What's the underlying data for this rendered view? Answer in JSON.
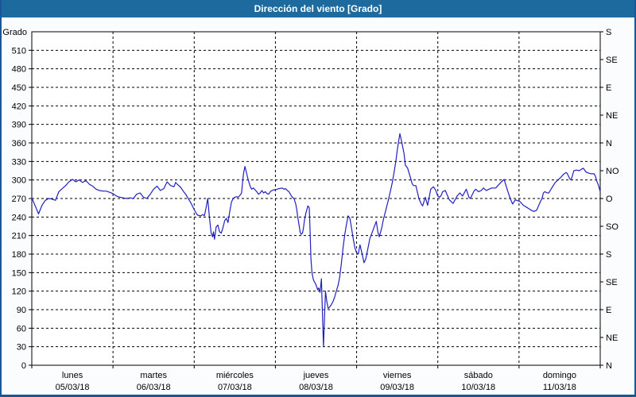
{
  "window": {
    "title": "Dirección del viento [Grado]"
  },
  "colors": {
    "titlebar_bg": "#1d6b9e",
    "titlebar_text": "#ffffff",
    "window_border": "#1a5796",
    "content_bg": "#fbfcfe",
    "plot_bg": "#ffffff",
    "grid": "#000000",
    "axis_text": "#000000",
    "series_line": "#2020bf"
  },
  "chart_data": {
    "type": "line",
    "title": "Dirección del viento [Grado]",
    "grid": "dashed",
    "legend": "none",
    "ylim": [
      0,
      540
    ],
    "xlim_hours": [
      0,
      168
    ],
    "y_left": {
      "title": "Grado",
      "ticks": [
        510,
        480,
        450,
        420,
        390,
        360,
        330,
        300,
        270,
        240,
        210,
        180,
        150,
        120,
        90,
        60,
        30,
        0
      ]
    },
    "y_right": {
      "ticks": [
        {
          "deg": 540,
          "label": "S"
        },
        {
          "deg": 495,
          "label": "SE"
        },
        {
          "deg": 450,
          "label": "E"
        },
        {
          "deg": 405,
          "label": "NE"
        },
        {
          "deg": 360,
          "label": "N"
        },
        {
          "deg": 315,
          "label": "NO"
        },
        {
          "deg": 270,
          "label": "O"
        },
        {
          "deg": 225,
          "label": "SO"
        },
        {
          "deg": 180,
          "label": "S"
        },
        {
          "deg": 135,
          "label": "SE"
        },
        {
          "deg": 90,
          "label": "E"
        },
        {
          "deg": 45,
          "label": "NE"
        },
        {
          "deg": 0,
          "label": "N"
        }
      ]
    },
    "x_axis": {
      "days": [
        {
          "name": "lunes",
          "date": "05/03/18"
        },
        {
          "name": "martes",
          "date": "06/03/18"
        },
        {
          "name": "miércoles",
          "date": "07/03/18"
        },
        {
          "name": "jueves",
          "date": "08/03/18"
        },
        {
          "name": "viernes",
          "date": "09/03/18"
        },
        {
          "name": "sábado",
          "date": "10/03/18"
        },
        {
          "name": "domingo",
          "date": "11/03/18"
        }
      ]
    },
    "series": [
      {
        "name": "Dirección del viento",
        "unit": "Grado",
        "color": "#2020bf",
        "points": [
          [
            0,
            271
          ],
          [
            1,
            258
          ],
          [
            2,
            245
          ],
          [
            3,
            259
          ],
          [
            4,
            267
          ],
          [
            5,
            270
          ],
          [
            6,
            269
          ],
          [
            7,
            267
          ],
          [
            8,
            281
          ],
          [
            9,
            286
          ],
          [
            10,
            291
          ],
          [
            11,
            297
          ],
          [
            12,
            301
          ],
          [
            13,
            297
          ],
          [
            14,
            300
          ],
          [
            15,
            296
          ],
          [
            16,
            299
          ],
          [
            17,
            293
          ],
          [
            18,
            290
          ],
          [
            19,
            285
          ],
          [
            20,
            283
          ],
          [
            21,
            282
          ],
          [
            22,
            282
          ],
          [
            23,
            280
          ],
          [
            24,
            278
          ],
          [
            25,
            274
          ],
          [
            26,
            272
          ],
          [
            27,
            271
          ],
          [
            28,
            270
          ],
          [
            29,
            271
          ],
          [
            30,
            270
          ],
          [
            31,
            277
          ],
          [
            32,
            279
          ],
          [
            33,
            272
          ],
          [
            34,
            270
          ],
          [
            35,
            277
          ],
          [
            36,
            285
          ],
          [
            37,
            290
          ],
          [
            38,
            283
          ],
          [
            39,
            286
          ],
          [
            40,
            297
          ],
          [
            41,
            291
          ],
          [
            42,
            289
          ],
          [
            42.5,
            296
          ],
          [
            43,
            293
          ],
          [
            44,
            288
          ],
          [
            44.5,
            284
          ],
          [
            45,
            280
          ],
          [
            45.5,
            277
          ],
          [
            46,
            272
          ],
          [
            47,
            263
          ],
          [
            48,
            252
          ],
          [
            48.5,
            247
          ],
          [
            49,
            243
          ],
          [
            50,
            242
          ],
          [
            50.5,
            244
          ],
          [
            51,
            242
          ],
          [
            51.5,
            255
          ],
          [
            52,
            270
          ],
          [
            52.5,
            240
          ],
          [
            53,
            214
          ],
          [
            53.4,
            208
          ],
          [
            53.7,
            216
          ],
          [
            54,
            204
          ],
          [
            54.5,
            224
          ],
          [
            55,
            227
          ],
          [
            55.5,
            216
          ],
          [
            56,
            214
          ],
          [
            56.5,
            223
          ],
          [
            57,
            234
          ],
          [
            57.5,
            238
          ],
          [
            58,
            231
          ],
          [
            58.5,
            249
          ],
          [
            59,
            264
          ],
          [
            59.5,
            270
          ],
          [
            60,
            272
          ],
          [
            60.5,
            273
          ],
          [
            61,
            272
          ],
          [
            61.5,
            275
          ],
          [
            62,
            279
          ],
          [
            62.3,
            296
          ],
          [
            62.6,
            311
          ],
          [
            63,
            322
          ],
          [
            63.4,
            313
          ],
          [
            63.8,
            304
          ],
          [
            64.2,
            296
          ],
          [
            64.6,
            289
          ],
          [
            65,
            285
          ],
          [
            65.5,
            287
          ],
          [
            66,
            284
          ],
          [
            66.5,
            281
          ],
          [
            67,
            277
          ],
          [
            67.5,
            279
          ],
          [
            68,
            283
          ],
          [
            68.5,
            279
          ],
          [
            69,
            281
          ],
          [
            69.5,
            278
          ],
          [
            70,
            277
          ],
          [
            70.5,
            281
          ],
          [
            71,
            283
          ],
          [
            71.5,
            284
          ],
          [
            72,
            284
          ],
          [
            73,
            286
          ],
          [
            74,
            287
          ],
          [
            74.5,
            285
          ],
          [
            75,
            286
          ],
          [
            75.5,
            283
          ],
          [
            76,
            281
          ],
          [
            76.5,
            276
          ],
          [
            77,
            272
          ],
          [
            77.5,
            270
          ],
          [
            78,
            261
          ],
          [
            78.3,
            253
          ],
          [
            78.6,
            240
          ],
          [
            79,
            227
          ],
          [
            79.3,
            216
          ],
          [
            79.6,
            212
          ],
          [
            80,
            214
          ],
          [
            80.3,
            223
          ],
          [
            80.6,
            235
          ],
          [
            81,
            246
          ],
          [
            81.3,
            252
          ],
          [
            81.6,
            258
          ],
          [
            82,
            255
          ],
          [
            82.2,
            227
          ],
          [
            82.5,
            173
          ],
          [
            82.8,
            150
          ],
          [
            83.2,
            139
          ],
          [
            83.5,
            135
          ],
          [
            83.8,
            133
          ],
          [
            84.2,
            127
          ],
          [
            84.5,
            122
          ],
          [
            84.8,
            125
          ],
          [
            85.2,
            118
          ],
          [
            85.6,
            140
          ],
          [
            85.9,
            83
          ],
          [
            86.2,
            30
          ],
          [
            86.4,
            60
          ],
          [
            86.8,
            120
          ],
          [
            87.2,
            103
          ],
          [
            87.6,
            92
          ],
          [
            88,
            94
          ],
          [
            88.5,
            98
          ],
          [
            89,
            103
          ],
          [
            89.5,
            110
          ],
          [
            90,
            120
          ],
          [
            90.5,
            129
          ],
          [
            91,
            143
          ],
          [
            91.5,
            165
          ],
          [
            92,
            190
          ],
          [
            92.5,
            212
          ],
          [
            93,
            228
          ],
          [
            93.5,
            242
          ],
          [
            94,
            238
          ],
          [
            94.5,
            222
          ],
          [
            95,
            205
          ],
          [
            95.5,
            190
          ],
          [
            96,
            182
          ],
          [
            96.5,
            180
          ],
          [
            97,
            195
          ],
          [
            97.5,
            183
          ],
          [
            98.2,
            166
          ],
          [
            98.7,
            172
          ],
          [
            99.3,
            188
          ],
          [
            99.9,
            205
          ],
          [
            100.6,
            215
          ],
          [
            101.2,
            224
          ],
          [
            101.8,
            233
          ],
          [
            102.3,
            215
          ],
          [
            102.7,
            208
          ],
          [
            103.4,
            222
          ],
          [
            104,
            238
          ],
          [
            104.5,
            248
          ],
          [
            105.3,
            266
          ],
          [
            106,
            282
          ],
          [
            106.5,
            295
          ],
          [
            107,
            310
          ],
          [
            107.6,
            330
          ],
          [
            108.1,
            352
          ],
          [
            108.8,
            375
          ],
          [
            109.3,
            362
          ],
          [
            110,
            343
          ],
          [
            110.4,
            324
          ],
          [
            111.1,
            319
          ],
          [
            112,
            302
          ],
          [
            112.4,
            294
          ],
          [
            112.8,
            291
          ],
          [
            113.5,
            291
          ],
          [
            114.4,
            270
          ],
          [
            115.1,
            261
          ],
          [
            115.5,
            258
          ],
          [
            116.3,
            272
          ],
          [
            117,
            259
          ],
          [
            117.9,
            285
          ],
          [
            118.7,
            289
          ],
          [
            119.4,
            283
          ],
          [
            120,
            274
          ],
          [
            120.5,
            272
          ],
          [
            121,
            275
          ],
          [
            121.4,
            281
          ],
          [
            122.2,
            283
          ],
          [
            123.4,
            268
          ],
          [
            124.1,
            264
          ],
          [
            124.5,
            262
          ],
          [
            125.7,
            274
          ],
          [
            126.5,
            279
          ],
          [
            127.3,
            274
          ],
          [
            128.4,
            285
          ],
          [
            129.2,
            272
          ],
          [
            129.6,
            270
          ],
          [
            130.8,
            283
          ],
          [
            131.2,
            285
          ],
          [
            132,
            281
          ],
          [
            132.8,
            283
          ],
          [
            133.5,
            287
          ],
          [
            134.3,
            283
          ],
          [
            135.1,
            285
          ],
          [
            135.9,
            287
          ],
          [
            137.1,
            287
          ],
          [
            138.3,
            294
          ],
          [
            139,
            298
          ],
          [
            139.6,
            301
          ],
          [
            140.6,
            283
          ],
          [
            141.4,
            270
          ],
          [
            142.1,
            261
          ],
          [
            142.9,
            268
          ],
          [
            143.7,
            266
          ],
          [
            144.1,
            266
          ],
          [
            145.3,
            259
          ],
          [
            146.5,
            255
          ],
          [
            147.6,
            251
          ],
          [
            148.4,
            249
          ],
          [
            149.2,
            251
          ],
          [
            150.4,
            266
          ],
          [
            150.8,
            270
          ],
          [
            151.2,
            279
          ],
          [
            151.6,
            281
          ],
          [
            152.4,
            279
          ],
          [
            152.8,
            279
          ],
          [
            153.9,
            289
          ],
          [
            154.7,
            296
          ],
          [
            155.5,
            300
          ],
          [
            156.3,
            304
          ],
          [
            157.1,
            309
          ],
          [
            157.9,
            312
          ],
          [
            158.2,
            311
          ],
          [
            159,
            302
          ],
          [
            159.4,
            300
          ],
          [
            160.2,
            315
          ],
          [
            161,
            316
          ],
          [
            161.8,
            315
          ],
          [
            162.6,
            318
          ],
          [
            163,
            319
          ],
          [
            163.8,
            313
          ],
          [
            164.6,
            311
          ],
          [
            165.4,
            310
          ],
          [
            166.2,
            310
          ],
          [
            166.6,
            306
          ],
          [
            167,
            298
          ],
          [
            167.5,
            291
          ],
          [
            168,
            281
          ]
        ]
      }
    ]
  }
}
